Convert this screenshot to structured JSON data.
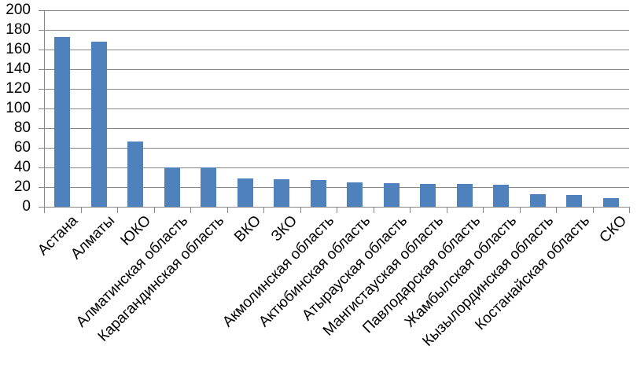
{
  "chart_data": {
    "type": "bar",
    "title": "",
    "xlabel": "",
    "ylabel": "",
    "categories": [
      "Астана",
      "Алматы",
      "ЮКО",
      "Алматинская область",
      "Карагандинская область",
      "ВКО",
      "ЗКО",
      "Акмолинская область",
      "Актюбинская область",
      "Атырауская область",
      "Мангистауская область",
      "Павлодарская область",
      "Жамбылская область",
      "Кызылординская область",
      "Костанайская область",
      "СКО"
    ],
    "values": [
      173,
      168,
      66,
      40,
      40,
      29,
      28,
      27,
      25,
      24,
      23,
      23,
      22,
      13,
      12,
      9
    ],
    "ylim": [
      0,
      200
    ],
    "ytick_step": 20,
    "ytick_labels": [
      "0",
      "20",
      "40",
      "60",
      "80",
      "100",
      "120",
      "140",
      "160",
      "180",
      "200"
    ],
    "grid": true,
    "legend": false,
    "x_label_rotation_deg": 45,
    "bar_color": "#4F81BD",
    "gridline_color": "#878787",
    "axis_color": "#878787",
    "text_color": "#000000",
    "background_color": "#FFFFFF"
  }
}
